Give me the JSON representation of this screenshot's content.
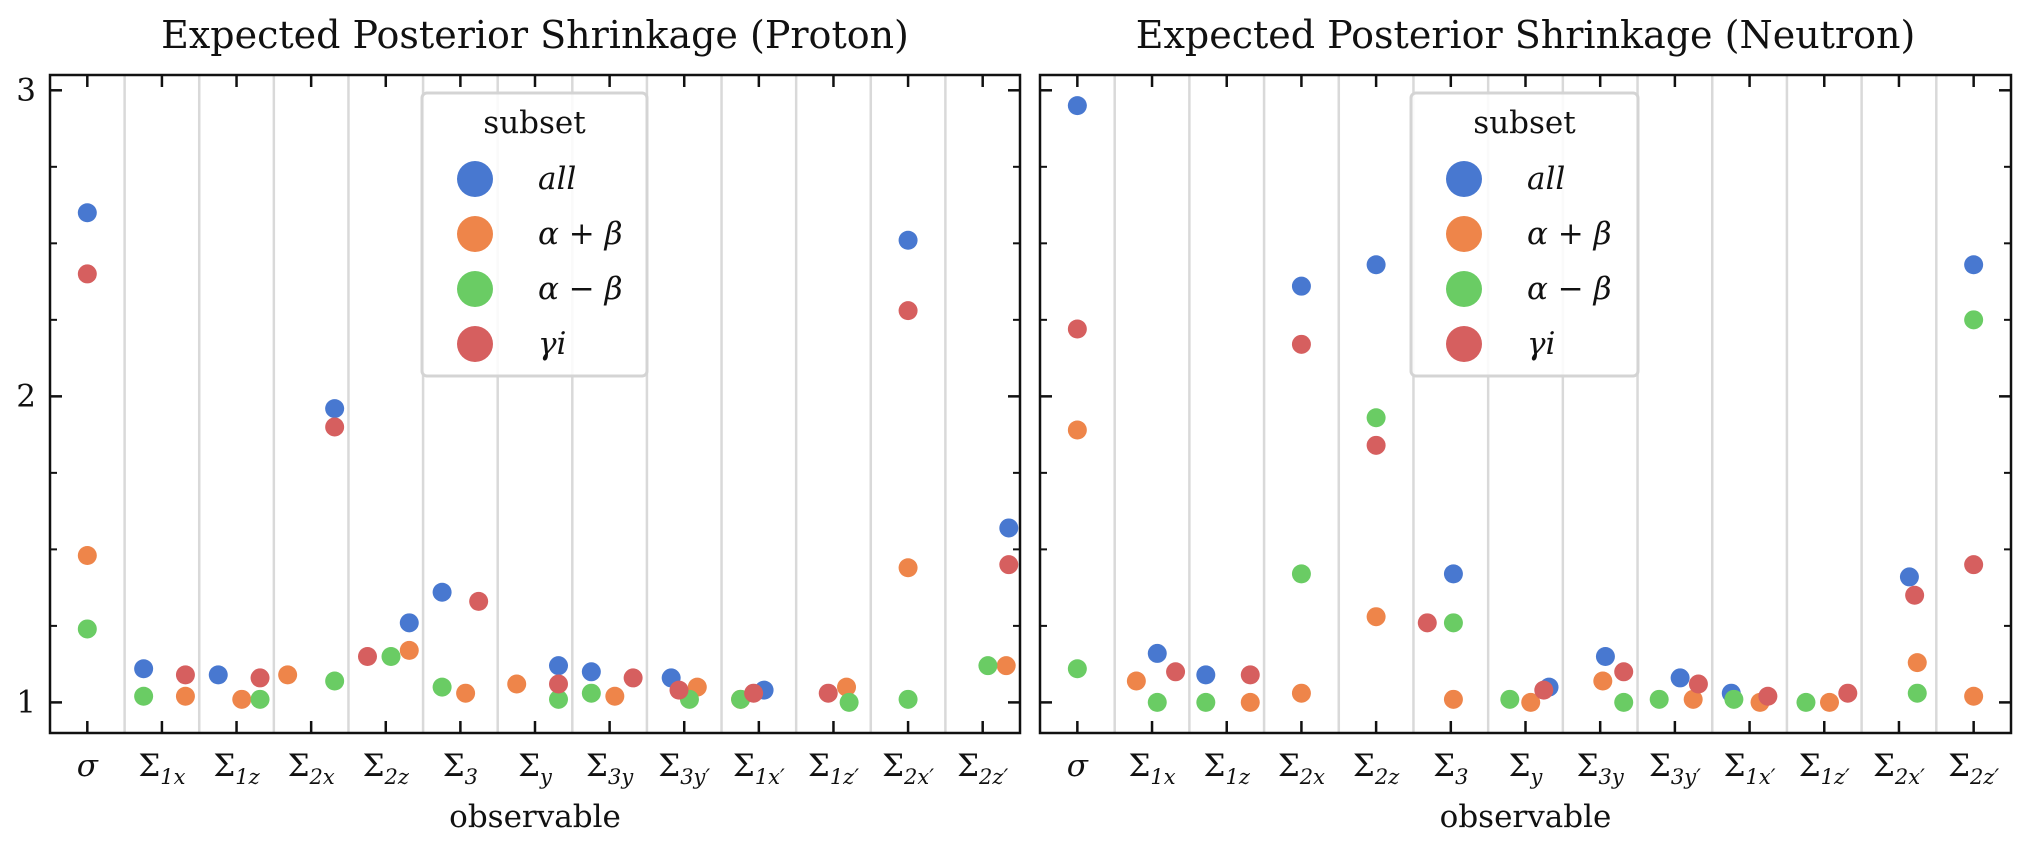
{
  "chart_data": [
    {
      "type": "scatter",
      "title": "Expected Posterior Shrinkage (Proton)",
      "xlabel": "observable",
      "ylabel": "",
      "ylim": [
        0.9,
        3.05
      ],
      "yticks": [
        "1",
        "2",
        "3"
      ],
      "categories": [
        "σ",
        "Σ1x",
        "Σ1z",
        "Σ2x",
        "Σ2z",
        "Σ3",
        "Σy",
        "Σ3y",
        "Σ3y'",
        "Σ1x'",
        "Σ1z'",
        "Σ2x'",
        "Σ2z'"
      ],
      "category_labels": [
        {
          "sym": "σ",
          "sub": ""
        },
        {
          "sym": "Σ",
          "sub": "1x"
        },
        {
          "sym": "Σ",
          "sub": "1z"
        },
        {
          "sym": "Σ",
          "sub": "2x"
        },
        {
          "sym": "Σ",
          "sub": "2z"
        },
        {
          "sym": "Σ",
          "sub": "3"
        },
        {
          "sym": "Σ",
          "sub": "y"
        },
        {
          "sym": "Σ",
          "sub": "3y"
        },
        {
          "sym": "Σ",
          "sub": "3y′"
        },
        {
          "sym": "Σ",
          "sub": "1x′"
        },
        {
          "sym": "Σ",
          "sub": "1z′"
        },
        {
          "sym": "Σ",
          "sub": "2x′"
        },
        {
          "sym": "Σ",
          "sub": "2z′"
        }
      ],
      "legend": {
        "title": "subset",
        "position": "top-center"
      },
      "series": [
        {
          "name": "all",
          "color": "#4878d0",
          "values": [
            2.6,
            1.11,
            1.09,
            1.96,
            1.26,
            1.36,
            1.12,
            1.1,
            1.08,
            1.04,
            null,
            2.51,
            1.57
          ],
          "offsets": [
            0,
            -0.35,
            -0.35,
            0.45,
            0.45,
            -0.35,
            0.45,
            -0.35,
            -0.25,
            0.1,
            null,
            0,
            0.5
          ]
        },
        {
          "name": "α + β",
          "color": "#ee854a",
          "values": [
            1.48,
            1.02,
            1.01,
            1.09,
            1.17,
            1.03,
            1.06,
            1.02,
            1.05,
            1.01,
            1.05,
            1.44,
            1.12
          ],
          "offsets": [
            0,
            0.45,
            0.1,
            -0.45,
            0.45,
            0.1,
            -0.35,
            0.1,
            0.25,
            -0.35,
            0.25,
            0,
            0.45
          ]
        },
        {
          "name": "α − β",
          "color": "#6acc64",
          "values": [
            1.24,
            1.02,
            1.01,
            1.07,
            1.15,
            1.05,
            1.01,
            1.03,
            1.01,
            1.01,
            1.0,
            1.01,
            1.12
          ],
          "offsets": [
            0,
            -0.35,
            0.45,
            0.45,
            0.1,
            -0.35,
            0.45,
            -0.35,
            0.1,
            -0.35,
            0.3,
            0,
            0.1
          ]
        },
        {
          "name": "γi",
          "color": "#d65f5f",
          "values": [
            2.4,
            1.09,
            1.08,
            1.9,
            1.15,
            1.33,
            1.06,
            1.08,
            1.04,
            1.03,
            1.03,
            2.28,
            1.45
          ],
          "offsets": [
            0,
            0.45,
            0.45,
            0.45,
            -0.35,
            0.35,
            0.45,
            0.45,
            -0.1,
            -0.1,
            -0.1,
            0,
            0.5
          ]
        }
      ]
    },
    {
      "type": "scatter",
      "title": "Expected Posterior Shrinkage (Neutron)",
      "xlabel": "observable",
      "ylabel": "",
      "ylim": [
        0.9,
        3.05
      ],
      "yticks": [
        "1",
        "2",
        "3"
      ],
      "categories": [
        "σ",
        "Σ1x",
        "Σ1z",
        "Σ2x",
        "Σ2z",
        "Σ3",
        "Σy",
        "Σ3y",
        "Σ3y'",
        "Σ1x'",
        "Σ1z'",
        "Σ2x'",
        "Σ2z'"
      ],
      "category_labels": [
        {
          "sym": "σ",
          "sub": ""
        },
        {
          "sym": "Σ",
          "sub": "1x"
        },
        {
          "sym": "Σ",
          "sub": "1z"
        },
        {
          "sym": "Σ",
          "sub": "2x"
        },
        {
          "sym": "Σ",
          "sub": "2z"
        },
        {
          "sym": "Σ",
          "sub": "3"
        },
        {
          "sym": "Σ",
          "sub": "y"
        },
        {
          "sym": "Σ",
          "sub": "3y"
        },
        {
          "sym": "Σ",
          "sub": "3y′"
        },
        {
          "sym": "Σ",
          "sub": "1x′"
        },
        {
          "sym": "Σ",
          "sub": "1z′"
        },
        {
          "sym": "Σ",
          "sub": "2x′"
        },
        {
          "sym": "Σ",
          "sub": "2z′"
        }
      ],
      "legend": {
        "title": "subset",
        "position": "top-center"
      },
      "series": [
        {
          "name": "all",
          "color": "#4878d0",
          "values": [
            2.95,
            1.16,
            1.09,
            2.36,
            2.43,
            1.42,
            1.05,
            1.15,
            1.08,
            1.03,
            null,
            1.41,
            2.43
          ],
          "offsets": [
            0,
            0.1,
            -0.4,
            0,
            0,
            0.05,
            0.45,
            0.1,
            0.1,
            -0.35,
            null,
            0.2,
            0
          ]
        },
        {
          "name": "α + β",
          "color": "#ee854a",
          "values": [
            1.89,
            1.07,
            1.0,
            1.03,
            1.28,
            1.01,
            1.0,
            1.07,
            1.01,
            1.0,
            1.0,
            1.13,
            1.02
          ],
          "offsets": [
            0,
            -0.3,
            0.45,
            0,
            0,
            0.05,
            0.1,
            0.05,
            0.35,
            0.2,
            0.1,
            0.35,
            0
          ]
        },
        {
          "name": "α − β",
          "color": "#6acc64",
          "values": [
            1.11,
            1.0,
            1.0,
            1.42,
            1.93,
            1.26,
            1.01,
            1.0,
            1.01,
            1.01,
            1.0,
            1.03,
            2.25
          ],
          "offsets": [
            0,
            0.1,
            -0.4,
            0,
            0,
            0.05,
            -0.3,
            0.45,
            -0.3,
            -0.3,
            -0.35,
            0.35,
            0
          ]
        },
        {
          "name": "γi",
          "color": "#d65f5f",
          "values": [
            2.22,
            1.1,
            1.09,
            2.17,
            1.84,
            1.26,
            1.04,
            1.1,
            1.06,
            1.02,
            1.03,
            1.35,
            1.45
          ],
          "offsets": [
            0,
            0.45,
            0.45,
            0,
            0,
            -0.45,
            0.35,
            0.45,
            0.45,
            0.35,
            0.45,
            0.3,
            0
          ]
        }
      ]
    }
  ]
}
